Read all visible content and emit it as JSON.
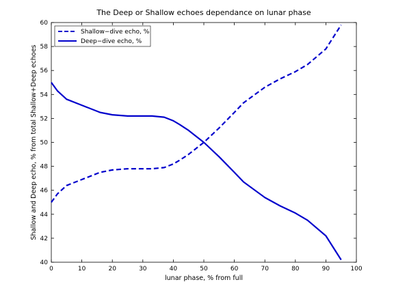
{
  "chart_data": {
    "type": "line",
    "title": "The Deep or Shallow echoes dependance on lunar phase",
    "xlabel": "lunar phase, % from full",
    "ylabel": "Shallow and Deep echo, % from total Shallow+Deep echoes",
    "xlim": [
      0,
      100
    ],
    "ylim": [
      40,
      60
    ],
    "xticks": [
      "0",
      "10",
      "20",
      "30",
      "40",
      "50",
      "60",
      "70",
      "80",
      "90",
      "100"
    ],
    "yticks": [
      "40",
      "42",
      "44",
      "46",
      "48",
      "50",
      "52",
      "54",
      "56",
      "58",
      "60"
    ],
    "legend_position": "top-left",
    "series": [
      {
        "name": "Shallow−dive echo, %",
        "line_style": "dashed",
        "color": "#0000cc",
        "x": [
          0,
          2,
          5,
          10,
          16,
          20,
          25,
          30,
          33,
          37,
          40,
          42,
          45,
          48,
          50,
          55,
          60,
          63,
          70,
          75,
          80,
          84,
          90,
          95
        ],
        "y": [
          45.0,
          45.7,
          46.4,
          46.9,
          47.5,
          47.7,
          47.8,
          47.8,
          47.8,
          47.9,
          48.2,
          48.5,
          49.0,
          49.6,
          50.0,
          51.2,
          52.5,
          53.3,
          54.6,
          55.3,
          55.9,
          56.5,
          57.8,
          59.8
        ]
      },
      {
        "name": "Deep−dive echo, %",
        "line_style": "solid",
        "color": "#0000cc",
        "x": [
          0,
          2,
          5,
          10,
          16,
          20,
          25,
          30,
          33,
          37,
          40,
          42,
          45,
          48,
          50,
          55,
          60,
          63,
          70,
          75,
          80,
          84,
          90,
          95
        ],
        "y": [
          55.0,
          54.3,
          53.6,
          53.1,
          52.5,
          52.3,
          52.2,
          52.2,
          52.2,
          52.1,
          51.8,
          51.5,
          51.0,
          50.4,
          50.0,
          48.8,
          47.5,
          46.7,
          45.4,
          44.7,
          44.1,
          43.5,
          42.2,
          40.2
        ]
      }
    ]
  }
}
